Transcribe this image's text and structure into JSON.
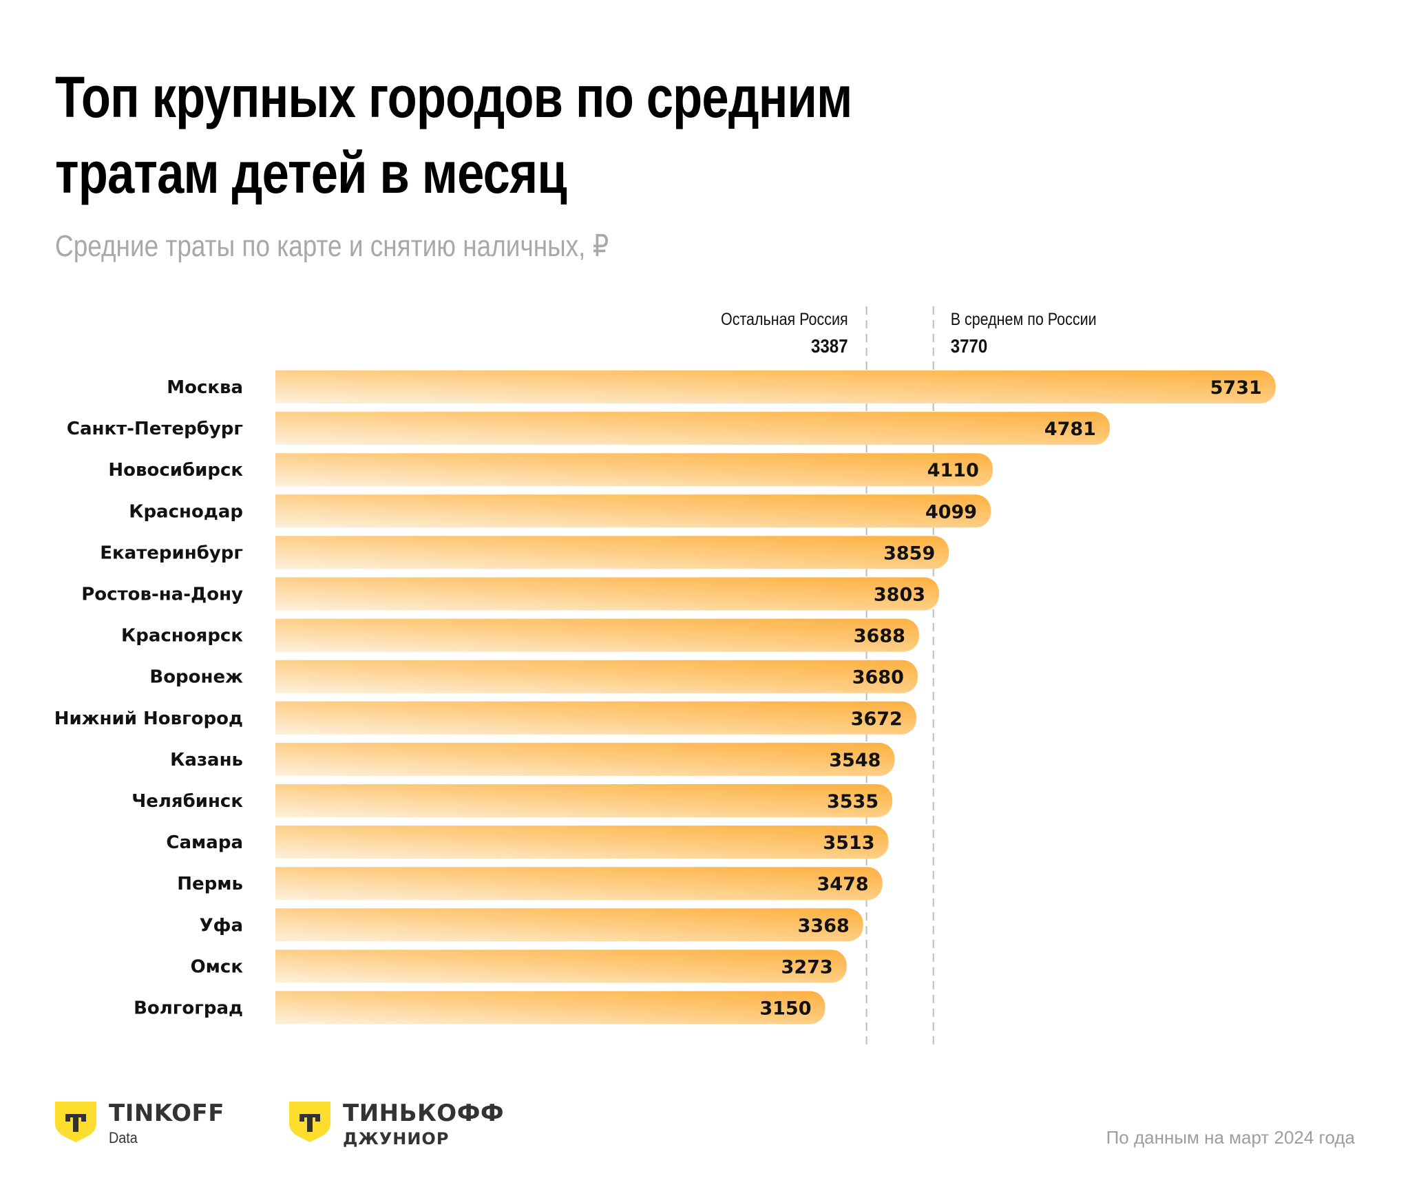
{
  "header": {
    "title_line1": "Топ крупных городов по средним",
    "title_line2": "тратам детей в месяц",
    "subtitle": "Средние траты по карте и снятию наличных, ₽"
  },
  "chart_data": {
    "type": "bar",
    "orientation": "horizontal",
    "title": "Топ крупных городов по средним тратам детей в месяц",
    "subtitle": "Средние траты по карте и снятию наличных, ₽",
    "xlabel": "",
    "ylabel": "",
    "xlim": [
      0,
      5731
    ],
    "grid": false,
    "categories": [
      "Москва",
      "Санкт-Петербург",
      "Новосибирск",
      "Краснодар",
      "Екатеринбург",
      "Ростов-на-Дону",
      "Красноярск",
      "Воронеж",
      "Нижний Новгород",
      "Казань",
      "Челябинск",
      "Самара",
      "Пермь",
      "Уфа",
      "Омск",
      "Волгоград"
    ],
    "values": [
      5731,
      4781,
      4110,
      4099,
      3859,
      3803,
      3688,
      3680,
      3672,
      3548,
      3535,
      3513,
      3478,
      3368,
      3273,
      3150
    ],
    "reference_lines": [
      {
        "label": "Остальная Россия",
        "value": 3387,
        "label_align": "left"
      },
      {
        "label": "В среднем по России",
        "value": 3770,
        "label_align": "right"
      }
    ],
    "colors": {
      "bar_light": "#fdf0dc",
      "bar_dark": "#fdb03f",
      "ref_line": "#bdbdbd"
    }
  },
  "footer": {
    "logo1": {
      "name": "TINKOFF",
      "sub": "Data",
      "icon": "tinkoff-shield-icon"
    },
    "logo2": {
      "name": "ТИНЬКОФФ",
      "sub": "ДЖУНИОР",
      "icon": "tinkoff-shield-icon"
    },
    "note": "По данным на март 2024 года"
  },
  "brand_colors": {
    "yellow": "#ffdd2d",
    "dark": "#333333"
  }
}
